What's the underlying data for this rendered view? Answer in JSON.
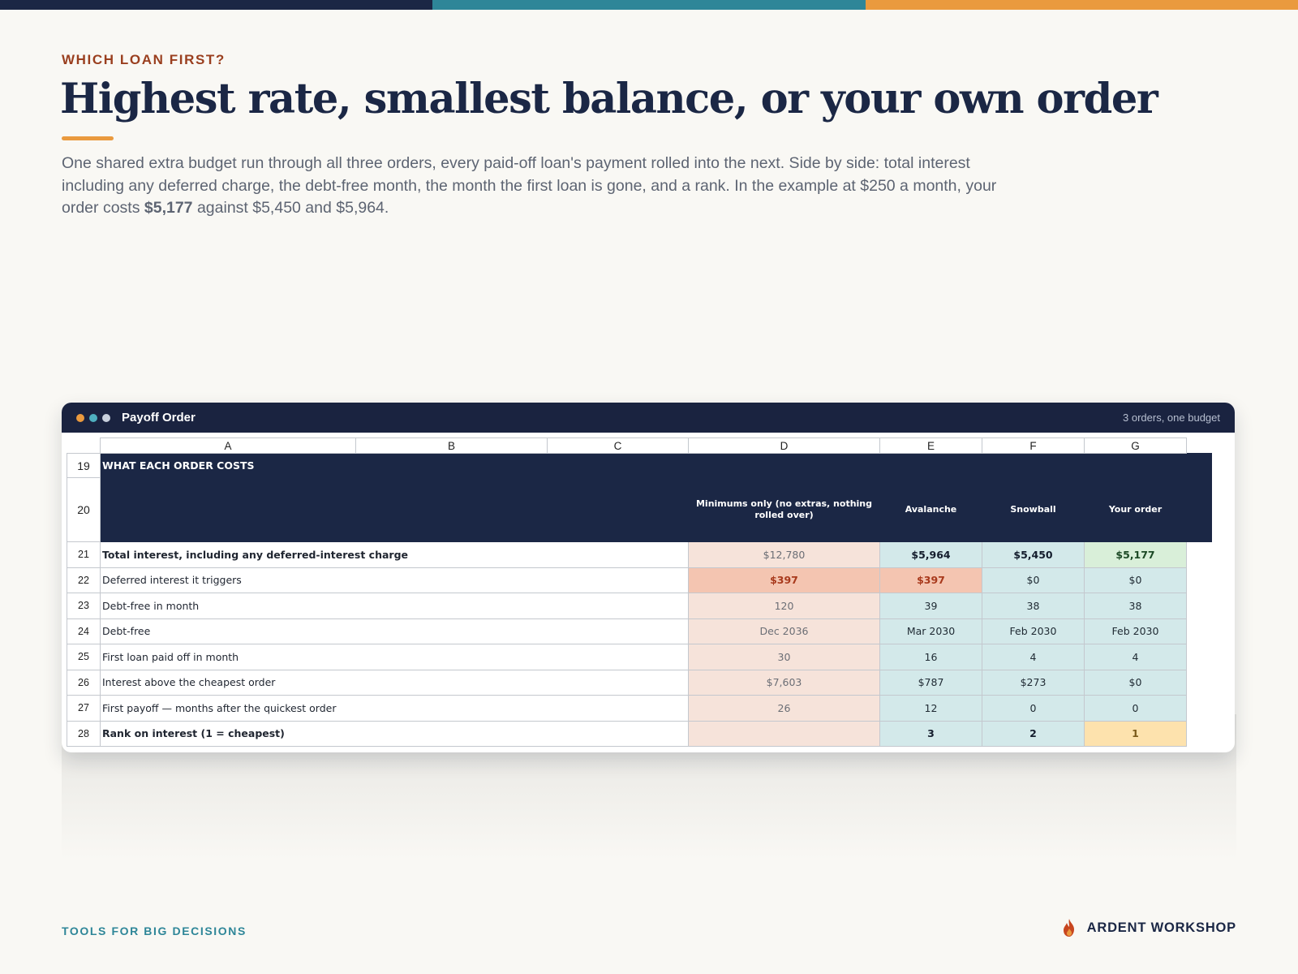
{
  "colors": {
    "navy": "#1b2745",
    "teal": "#2e8698",
    "orange": "#ea9a3e",
    "rust": "#9a3f1f"
  },
  "eyebrow": "WHICH LOAN FIRST?",
  "headline": "Highest rate, smallest balance, or your own order",
  "lede": {
    "before": "One shared extra budget run through all three orders, every paid-off loan's payment rolled into the next. Side by side: total interest including any deferred charge, the debt-free month, the month the first loan is gone, and a rank. In the example at $250 a month, your order costs ",
    "highlight": "$5,177",
    "after": " against $5,450 and $5,964."
  },
  "window": {
    "title": "Payoff Order",
    "meta": "3 orders, one budget",
    "dots": [
      "#ea9a3e",
      "#4fb0c0",
      "#c8d0dc"
    ]
  },
  "sheet": {
    "columns": [
      "A",
      "B",
      "C",
      "D",
      "E",
      "F",
      "G"
    ],
    "section_row": {
      "num": "19",
      "label": "WHAT EACH ORDER COSTS"
    },
    "header_row": {
      "num": "20",
      "minimums": "Minimums only (no extras, nothing rolled over)",
      "avalanche": "Avalanche",
      "snowball": "Snowball",
      "your_order": "Your order"
    },
    "rows": [
      {
        "num": "21",
        "label": "Total interest, including any deferred-interest charge",
        "min": "$12,780",
        "avalanche": "$5,964",
        "snowball": "$5,450",
        "yours": "$5,177"
      },
      {
        "num": "22",
        "label": "Deferred interest it triggers",
        "min": "$397",
        "avalanche": "$397",
        "snowball": "$0",
        "yours": "$0"
      },
      {
        "num": "23",
        "label": "Debt-free in month",
        "min": "120",
        "avalanche": "39",
        "snowball": "38",
        "yours": "38"
      },
      {
        "num": "24",
        "label": "Debt-free",
        "min": "Dec 2036",
        "avalanche": "Mar 2030",
        "snowball": "Feb 2030",
        "yours": "Feb 2030"
      },
      {
        "num": "25",
        "label": "First loan paid off in month",
        "min": "30",
        "avalanche": "16",
        "snowball": "4",
        "yours": "4"
      },
      {
        "num": "26",
        "label": "Interest above the cheapest order",
        "min": "$7,603",
        "avalanche": "$787",
        "snowball": "$273",
        "yours": "$0"
      },
      {
        "num": "27",
        "label": "First payoff — months after the quickest order",
        "min": "26",
        "avalanche": "12",
        "snowball": "0",
        "yours": "0"
      },
      {
        "num": "28",
        "label": "Rank on interest  (1 = cheapest)",
        "min": "",
        "avalanche": "3",
        "snowball": "2",
        "yours": "1"
      }
    ]
  },
  "footer": {
    "left": "TOOLS FOR BIG DECISIONS",
    "brand": "ARDENT WORKSHOP",
    "brand_icon": "flame-icon"
  }
}
